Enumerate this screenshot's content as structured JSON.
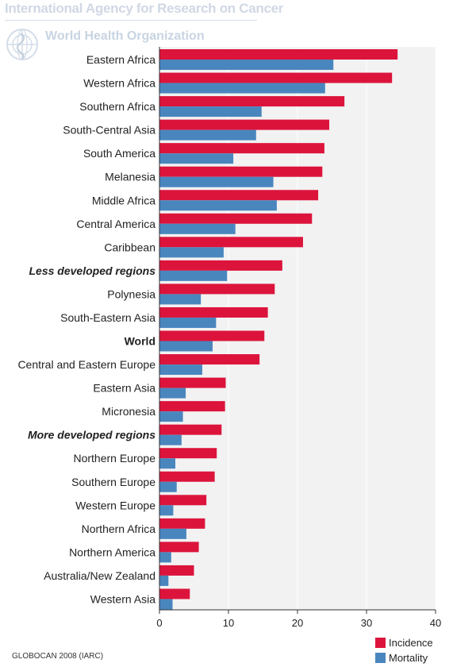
{
  "header": {
    "title": "International Agency for Research on Cancer",
    "organization": "World Health Organization"
  },
  "footer": {
    "source": "GLOBOCAN 2008 (IARC)"
  },
  "colors": {
    "incidence": "#dc143c",
    "mortality": "#4a86be",
    "plot_background": "#f2f2f2",
    "text": "#222222"
  },
  "legend": {
    "incidence_label": "Incidence",
    "mortality_label": "Mortality"
  },
  "chart_data": {
    "type": "bar",
    "orientation": "horizontal",
    "title": "",
    "xlabel": "",
    "ylabel": "",
    "xlim": [
      0,
      40
    ],
    "x_ticks": [
      0,
      10,
      20,
      30,
      40
    ],
    "grid": true,
    "legend_position": "bottom-right",
    "categories": [
      "Eastern Africa",
      "Western Africa",
      "Southern Africa",
      "South-Central Asia",
      "South America",
      "Melanesia",
      "Middle Africa",
      "Central America",
      "Caribbean",
      "Less developed regions",
      "Polynesia",
      "South-Eastern Asia",
      "World",
      "Central and Eastern Europe",
      "Eastern Asia",
      "Micronesia",
      "More developed regions",
      "Northern Europe",
      "Southern Europe",
      "Western Europe",
      "Northern Africa",
      "Northern America",
      "Australia/New Zealand",
      "Western Asia"
    ],
    "emphasized_categories": {
      "Less developed regions": "bold-italic",
      "World": "bold",
      "More developed regions": "bold-italic"
    },
    "series": [
      {
        "name": "Incidence",
        "values": [
          34.5,
          33.7,
          26.8,
          24.6,
          23.9,
          23.6,
          23.0,
          22.1,
          20.8,
          17.8,
          16.7,
          15.7,
          15.2,
          14.5,
          9.6,
          9.5,
          9.0,
          8.3,
          8.0,
          6.8,
          6.6,
          5.7,
          5.0,
          4.4
        ]
      },
      {
        "name": "Mortality",
        "values": [
          25.2,
          24.0,
          14.8,
          14.0,
          10.7,
          16.5,
          17.0,
          11.0,
          9.3,
          9.8,
          6.0,
          8.2,
          7.7,
          6.2,
          3.8,
          3.4,
          3.2,
          2.3,
          2.5,
          2.0,
          3.9,
          1.7,
          1.3,
          1.9
        ]
      }
    ]
  }
}
